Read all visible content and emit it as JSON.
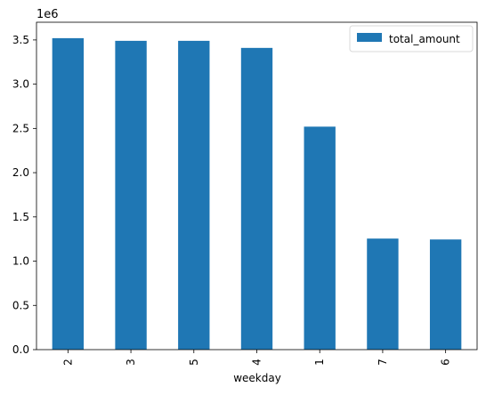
{
  "chart_data": {
    "type": "bar",
    "categories": [
      "2",
      "3",
      "5",
      "4",
      "1",
      "7",
      "6"
    ],
    "series": [
      {
        "name": "total_amount",
        "values": [
          3520000,
          3490000,
          3490000,
          3410000,
          2520000,
          1255000,
          1245000
        ],
        "color": "#1f77b4"
      }
    ],
    "xlabel": "weekday",
    "ylabel": "",
    "ylim": [
      0,
      3700000
    ],
    "yticks": [
      0,
      500000,
      1000000,
      1500000,
      2000000,
      2500000,
      3000000,
      3500000
    ],
    "ytick_labels": [
      "0.0",
      "0.5",
      "1.0",
      "1.5",
      "2.0",
      "2.5",
      "3.0",
      "3.5"
    ],
    "y_offset_label": "1e6",
    "grid": false,
    "legend": {
      "position": "top-right",
      "entries": [
        "total_amount"
      ]
    },
    "xtick_rotation": "vertical"
  }
}
